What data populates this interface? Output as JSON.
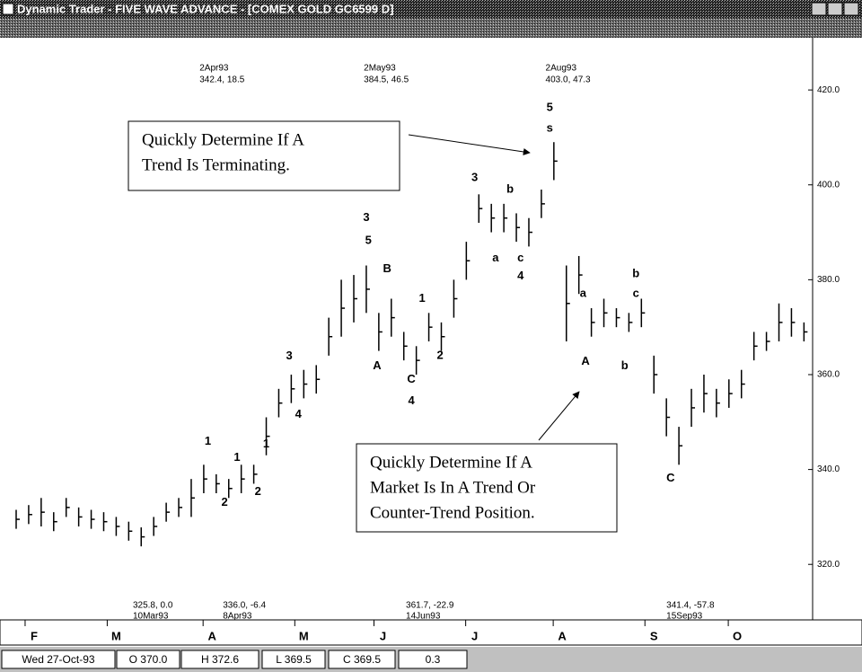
{
  "window": {
    "title": "Dynamic Trader - FIVE WAVE ADVANCE - [COMEX GOLD    GC6599 D]"
  },
  "chart_data": {
    "type": "hlc",
    "color": "#000000",
    "x": [
      0,
      3,
      6,
      9,
      12,
      15,
      18,
      21,
      24,
      27,
      30,
      33,
      36,
      39,
      42,
      45,
      48,
      51,
      54,
      57,
      60,
      63,
      66,
      69,
      72,
      75,
      78,
      81,
      84,
      87,
      90,
      93,
      96,
      99,
      102,
      105,
      108,
      111,
      114,
      117,
      120,
      123,
      126,
      129,
      132,
      135,
      138,
      141,
      144,
      147,
      150,
      153,
      156,
      159,
      162,
      165,
      168,
      171,
      174,
      177,
      180,
      183,
      186,
      189
    ],
    "highs": [
      331.5,
      332.5,
      334,
      331,
      334,
      332,
      331.5,
      331,
      330,
      329,
      327.8,
      330,
      333,
      334,
      338,
      341,
      339,
      338,
      341,
      341,
      351,
      357,
      360,
      361,
      362,
      372,
      380,
      381,
      383,
      373,
      376,
      369,
      366,
      373,
      371,
      380,
      388,
      398,
      396,
      396,
      394,
      393,
      399,
      409,
      383,
      385,
      374,
      376,
      374,
      373,
      376,
      364,
      355,
      349,
      357,
      360,
      357,
      359,
      361,
      369,
      369,
      375,
      374,
      371
    ],
    "lows": [
      327.5,
      328.5,
      328,
      327,
      330,
      328,
      327.5,
      327,
      326,
      325,
      323.8,
      326,
      329,
      330,
      330,
      335,
      335,
      334,
      335,
      337,
      343,
      351,
      354,
      355,
      356,
      364,
      368,
      371,
      373,
      365,
      368,
      363,
      360,
      367,
      365,
      372,
      380,
      392,
      390,
      390,
      388,
      387,
      393,
      401,
      367,
      377,
      368,
      370,
      370,
      369,
      370,
      356,
      347,
      341,
      349,
      352,
      351,
      353,
      355,
      363,
      365,
      367,
      368,
      367
    ],
    "closes": [
      329.5,
      330.5,
      331,
      329,
      332,
      330,
      329.5,
      329,
      328,
      327,
      325.8,
      328,
      331,
      332,
      334,
      338,
      337,
      336,
      338,
      339,
      347,
      354,
      357,
      358,
      359,
      368,
      374,
      376,
      378,
      369,
      372,
      366,
      363,
      370,
      368,
      376,
      384,
      395,
      393,
      393,
      391,
      390,
      396,
      405,
      375,
      381,
      371,
      373,
      372,
      371,
      373,
      360,
      351,
      345,
      353,
      356,
      354,
      356,
      358,
      366,
      367,
      371,
      371,
      369
    ],
    "xlim": [
      0,
      190
    ],
    "xticks": [
      {
        "value": 4.3,
        "label": "F"
      },
      {
        "value": 24,
        "label": "M"
      },
      {
        "value": 47,
        "label": "A"
      },
      {
        "value": 69,
        "label": "M"
      },
      {
        "value": 88,
        "label": "J"
      },
      {
        "value": 110,
        "label": "J"
      },
      {
        "value": 131,
        "label": "A"
      },
      {
        "value": 153,
        "label": "S"
      },
      {
        "value": 173,
        "label": "O"
      }
    ],
    "ylim": [
      308.3,
      427.6
    ],
    "yticks": [
      {
        "value": 420,
        "label": "420.0"
      },
      {
        "value": 400,
        "label": "400.0"
      },
      {
        "value": 380,
        "label": "380.0"
      },
      {
        "value": 360,
        "label": "360.0"
      },
      {
        "value": 340,
        "label": "340.0"
      },
      {
        "value": 320,
        "label": "320.0"
      }
    ],
    "annotations": [
      {
        "text": "1",
        "x": 46,
        "y": 345.9
      },
      {
        "text": "2",
        "x": 50,
        "y": 333
      },
      {
        "text": "1",
        "x": 53,
        "y": 342.5
      },
      {
        "text": "2",
        "x": 58,
        "y": 335.3
      },
      {
        "text": "1",
        "x": 60,
        "y": 345.3
      },
      {
        "text": "3",
        "x": 65.5,
        "y": 363.9
      },
      {
        "text": "4",
        "x": 67.7,
        "y": 351.6
      },
      {
        "text": "3",
        "x": 84,
        "y": 393
      },
      {
        "text": "5",
        "x": 84.5,
        "y": 388.2
      },
      {
        "text": "B",
        "x": 89,
        "y": 382.2
      },
      {
        "text": "A",
        "x": 86.6,
        "y": 361.8
      },
      {
        "text": "C",
        "x": 94.8,
        "y": 358.9
      },
      {
        "text": "4",
        "x": 94.8,
        "y": 354.4
      },
      {
        "text": "1",
        "x": 97.4,
        "y": 376
      },
      {
        "text": "2",
        "x": 101.7,
        "y": 364
      },
      {
        "text": "3",
        "x": 110,
        "y": 401.5
      },
      {
        "text": "b",
        "x": 118.5,
        "y": 399
      },
      {
        "text": "a",
        "x": 115,
        "y": 384.5
      },
      {
        "text": "c",
        "x": 121,
        "y": 384.5
      },
      {
        "text": "4",
        "x": 121,
        "y": 380.7
      },
      {
        "text": "5",
        "x": 128,
        "y": 416.2
      },
      {
        "text": "s",
        "x": 128,
        "y": 411.9
      },
      {
        "text": "a",
        "x": 136,
        "y": 377
      },
      {
        "text": "b",
        "x": 148.7,
        "y": 381.2
      },
      {
        "text": "c",
        "x": 148.7,
        "y": 377
      },
      {
        "text": "A",
        "x": 136.6,
        "y": 362.7
      },
      {
        "text": "b",
        "x": 146,
        "y": 361.8
      },
      {
        "text": "C",
        "x": 157,
        "y": 338.1
      }
    ],
    "top_markers": [
      {
        "x": 44,
        "lines": [
          "2Apr93",
          "342.4, 18.5"
        ]
      },
      {
        "x": 83.4,
        "lines": [
          "2May93",
          "384.5, 46.5"
        ]
      },
      {
        "x": 127,
        "lines": [
          "2Aug93",
          "403.0, 47.3"
        ]
      }
    ],
    "bottom_markers": [
      {
        "x": 28,
        "lines": [
          "325.8, 0.0",
          "10Mar93"
        ]
      },
      {
        "x": 49.6,
        "lines": [
          "336.0, -6.4",
          "8Apr93"
        ]
      },
      {
        "x": 93.5,
        "lines": [
          "361.7, -22.9",
          "14Jun93"
        ]
      },
      {
        "x": 156,
        "lines": [
          "341.4, -57.8",
          "15Sep93"
        ]
      }
    ],
    "callouts": [
      {
        "lines": [
          "Quickly Determine If A",
          "Trend Is Terminating."
        ]
      },
      {
        "lines": [
          "Quickly Determine If A",
          "Market Is In A Trend Or",
          "Counter-Trend Position."
        ]
      }
    ]
  },
  "status_bar": [
    "Wed 27-Oct-93",
    "O 370.0",
    "H 372.6",
    "L 369.5",
    "C 369.5",
    "0.3"
  ]
}
